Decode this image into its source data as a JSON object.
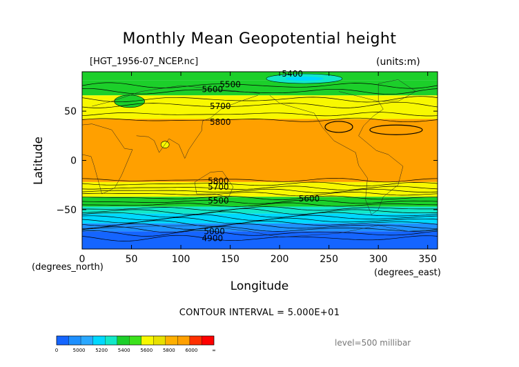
{
  "chart_data": {
    "type": "heatmap",
    "title": "Monthly Mean Geopotential height",
    "file": "[HGT_1956-07_NCEP.nc]",
    "units": "(units:m)",
    "xlabel": "Longitude",
    "ylabel": "Latitude",
    "x_unit": "(degrees_north)",
    "x_unit2": "(degrees_east)",
    "xlim": [
      0,
      360
    ],
    "ylim": [
      -90,
      90
    ],
    "x_ticks": [
      0,
      50,
      100,
      150,
      200,
      250,
      300,
      350
    ],
    "y_ticks": [
      50,
      0,
      -50
    ],
    "level": "level=500 millibar",
    "contour_interval": "CONTOUR INTERVAL = 5.000E+01",
    "colorbar": {
      "boundaries": [
        4800,
        4900,
        5000,
        5100,
        5200,
        5300,
        5400,
        5500,
        5600,
        5700,
        5800,
        5900,
        6000,
        6100
      ],
      "labels": [
        "0",
        "5000",
        "5200",
        "5400",
        "5600",
        "5800",
        "6000",
        "∞"
      ],
      "colors": [
        "#1565ff",
        "#1e90ff",
        "#2aa8ff",
        "#00d8ff",
        "#12e8c8",
        "#1ccf2a",
        "#3ce21c",
        "#f8f800",
        "#e8e000",
        "#ffb000",
        "#ffa000",
        "#ff3000",
        "#ff0000"
      ]
    },
    "bands": [
      {
        "lat_from": 90,
        "lat_to": 81,
        "color": "#1ccf2a"
      },
      {
        "lat_from": 81,
        "lat_to": 66,
        "color": "#1ccf2a"
      },
      {
        "lat_from": 66,
        "lat_to": 42,
        "color": "#f8f800"
      },
      {
        "lat_from": 42,
        "lat_to": -22,
        "color": "#ffa000"
      },
      {
        "lat_from": -22,
        "lat_to": -37,
        "color": "#f8f800"
      },
      {
        "lat_from": -37,
        "lat_to": -47,
        "color": "#1ccf2a"
      },
      {
        "lat_from": -47,
        "lat_to": -54,
        "color": "#12e8c8"
      },
      {
        "lat_from": -54,
        "lat_to": -64,
        "color": "#00d8ff"
      },
      {
        "lat_from": -64,
        "lat_to": -72,
        "color": "#1e90ff"
      },
      {
        "lat_from": -72,
        "lat_to": -90,
        "color": "#1565ff"
      }
    ],
    "contour_labels": [
      {
        "text": "5400",
        "lon": 213,
        "lat": 88
      },
      {
        "text": "5500",
        "lon": 150,
        "lat": 77
      },
      {
        "text": "5600",
        "lon": 132,
        "lat": 72
      },
      {
        "text": "5700",
        "lon": 140,
        "lat": 55
      },
      {
        "text": "5800",
        "lon": 140,
        "lat": 39
      },
      {
        "text": "5800",
        "lon": 138,
        "lat": -21
      },
      {
        "text": "5700",
        "lon": 138,
        "lat": -27
      },
      {
        "text": "5600",
        "lon": 230,
        "lat": -39
      },
      {
        "text": "5500",
        "lon": 138,
        "lat": -41
      },
      {
        "text": "5000",
        "lon": 134,
        "lat": -72
      },
      {
        "text": "4900",
        "lon": 132,
        "lat": -79
      }
    ]
  }
}
